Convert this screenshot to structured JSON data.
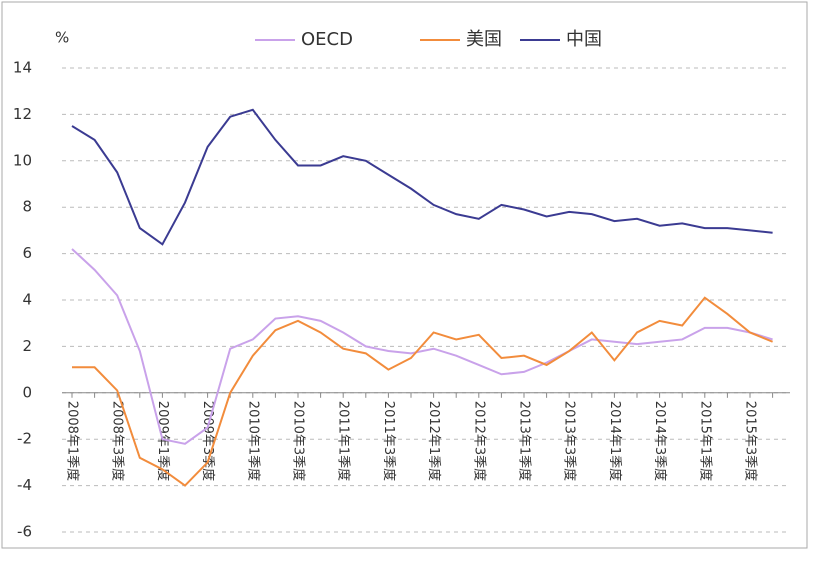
{
  "chart_data": {
    "type": "line",
    "y_label": "%",
    "categories": [
      "2008年1季度",
      null,
      "2008年3季度",
      null,
      "2009年1季度",
      null,
      "2009年3季度",
      null,
      "2010年1季度",
      null,
      "2010年3季度",
      null,
      "2011年1季度",
      null,
      "2011年3季度",
      null,
      "2012年1季度",
      null,
      "2012年3季度",
      null,
      "2013年1季度",
      null,
      "2013年3季度",
      null,
      "2014年1季度",
      null,
      "2014年3季度",
      null,
      "2015年1季度",
      null,
      "2015年3季度",
      null
    ],
    "series": [
      {
        "name": "OECD",
        "color": "#c9a2ea",
        "values": [
          6.2,
          5.3,
          4.2,
          1.8,
          -2.0,
          -2.2,
          -1.5,
          1.9,
          2.3,
          3.2,
          3.3,
          3.1,
          2.6,
          2.0,
          1.8,
          1.7,
          1.9,
          1.6,
          1.2,
          0.8,
          0.9,
          1.3,
          1.8,
          2.3,
          2.2,
          2.1,
          2.2,
          2.3,
          2.8,
          2.8,
          2.6,
          2.3
        ]
      },
      {
        "name": "美国",
        "color": "#f28c3c",
        "values": [
          1.1,
          1.1,
          0.1,
          -2.8,
          -3.3,
          -4.0,
          -3.0,
          0.0,
          1.6,
          2.7,
          3.1,
          2.6,
          1.9,
          1.7,
          1.0,
          1.5,
          2.6,
          2.3,
          2.5,
          1.5,
          1.6,
          1.2,
          1.8,
          2.6,
          1.4,
          2.6,
          3.1,
          2.9,
          4.1,
          3.4,
          2.6,
          2.2
        ]
      },
      {
        "name": "中国",
        "color": "#3b3b92",
        "values": [
          11.5,
          10.9,
          9.5,
          7.1,
          6.4,
          8.2,
          10.6,
          11.9,
          12.2,
          10.9,
          9.8,
          9.8,
          10.2,
          10.0,
          9.4,
          8.8,
          8.1,
          7.7,
          7.5,
          8.1,
          7.9,
          7.6,
          7.8,
          7.7,
          7.4,
          7.5,
          7.2,
          7.3,
          7.1,
          7.1,
          7.0,
          6.9
        ]
      }
    ],
    "ylim": [
      -6,
      14
    ],
    "yticks": [
      -6,
      -4,
      -2,
      0,
      2,
      4,
      6,
      8,
      10,
      12,
      14
    ],
    "grid": true
  }
}
